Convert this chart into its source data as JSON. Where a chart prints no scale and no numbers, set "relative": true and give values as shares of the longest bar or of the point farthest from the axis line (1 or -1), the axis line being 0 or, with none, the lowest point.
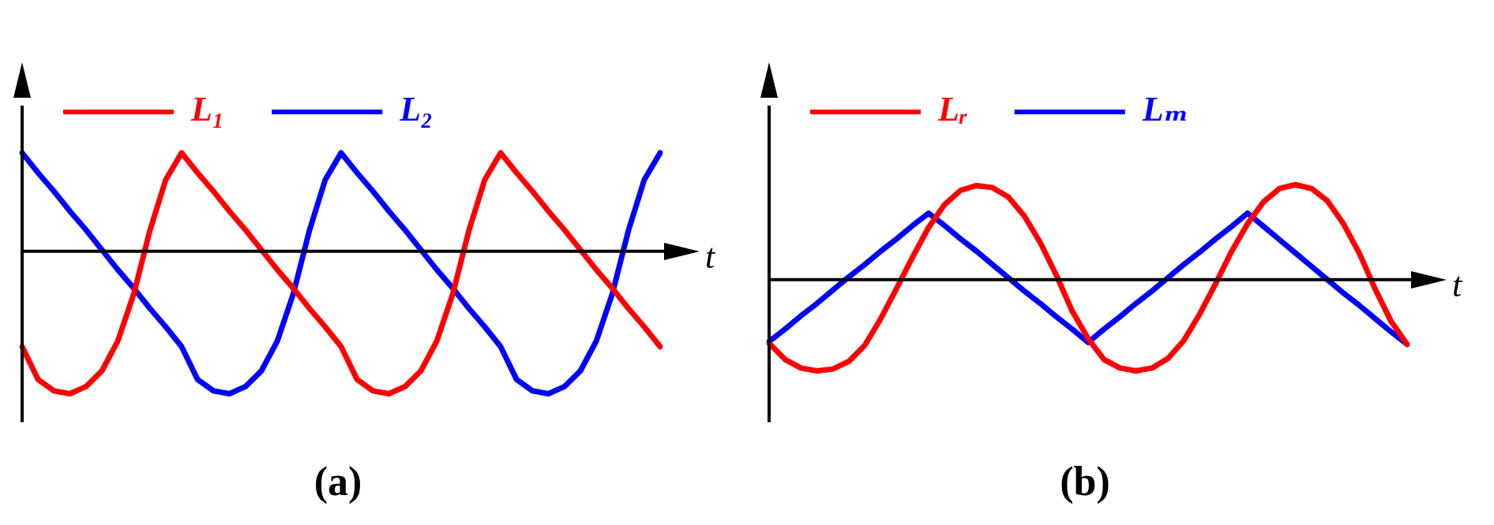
{
  "chart_data": [
    {
      "type": "line",
      "title": "(a)",
      "xlabel": "t",
      "relative": true,
      "legend": "top",
      "grid": false,
      "marker": "none",
      "categories": [
        null,
        null,
        null,
        null,
        null,
        null,
        null,
        null,
        null,
        null,
        null,
        null,
        null,
        null,
        null,
        null,
        null,
        null,
        null,
        null,
        null,
        null,
        null,
        null,
        null,
        null,
        null,
        null,
        null,
        null,
        null,
        null,
        null,
        null,
        null,
        null,
        null,
        null,
        null,
        null,
        null
      ],
      "series": [
        {
          "name": "L₁",
          "color": "#ff0000",
          "values": [
            -0.67,
            -0.9,
            -0.98,
            -1,
            -0.95,
            -0.84,
            -0.63,
            -0.3,
            0.14,
            0.5,
            0.69,
            0.55,
            0.42,
            0.28,
            0.15,
            0.01,
            -0.13,
            -0.26,
            -0.4,
            -0.53,
            -0.67,
            -0.9,
            -0.98,
            -1,
            -0.95,
            -0.84,
            -0.63,
            -0.3,
            0.14,
            0.5,
            0.69,
            0.55,
            0.42,
            0.28,
            0.15,
            0.01,
            -0.13,
            -0.26,
            -0.4,
            -0.53,
            -0.67
          ]
        },
        {
          "name": "L₂",
          "color": "#0000ff",
          "values": [
            0.69,
            0.55,
            0.42,
            0.28,
            0.15,
            0.01,
            -0.13,
            -0.26,
            -0.4,
            -0.53,
            -0.67,
            -0.9,
            -0.98,
            -1,
            -0.95,
            -0.84,
            -0.63,
            -0.3,
            0.14,
            0.5,
            0.69,
            0.55,
            0.42,
            0.28,
            0.15,
            0.01,
            -0.13,
            -0.26,
            -0.4,
            -0.53,
            -0.67,
            -0.9,
            -0.98,
            -1,
            -0.95,
            -0.84,
            -0.63,
            -0.3,
            0.14,
            0.5,
            0.69
          ]
        }
      ]
    },
    {
      "type": "line",
      "title": "(b)",
      "xlabel": "t",
      "relative": true,
      "legend": "top",
      "grid": false,
      "marker": "none",
      "categories": [
        null,
        null,
        null,
        null,
        null,
        null,
        null,
        null,
        null,
        null,
        null,
        null,
        null,
        null,
        null,
        null,
        null,
        null,
        null,
        null,
        null,
        null,
        null,
        null,
        null,
        null,
        null,
        null,
        null,
        null,
        null,
        null,
        null,
        null,
        null,
        null,
        null,
        null,
        null,
        null,
        null
      ],
      "series": [
        {
          "name": "Lᵣ",
          "color": "#ff0000",
          "values": [
            -0.67,
            -0.84,
            -0.93,
            -0.96,
            -0.94,
            -0.86,
            -0.69,
            -0.41,
            -0.09,
            0.24,
            0.55,
            0.79,
            0.94,
            0.99,
            0.97,
            0.87,
            0.67,
            0.39,
            0.05,
            -0.33,
            -0.62,
            -0.84,
            -0.93,
            -0.96,
            -0.93,
            -0.83,
            -0.64,
            -0.36,
            -0.04,
            0.3,
            0.59,
            0.82,
            0.96,
            1,
            0.96,
            0.83,
            0.59,
            0.28,
            -0.1,
            -0.44,
            -0.68
          ]
        },
        {
          "name": "Lₘ",
          "color": "#0000ff",
          "values": [
            -0.65,
            -0.52,
            -0.38,
            -0.25,
            -0.11,
            0.03,
            0.16,
            0.3,
            0.43,
            0.57,
            0.7,
            0.57,
            0.43,
            0.3,
            0.16,
            0.02,
            -0.12,
            -0.25,
            -0.39,
            -0.52,
            -0.66,
            -0.52,
            -0.39,
            -0.25,
            -0.12,
            0.02,
            0.16,
            0.29,
            0.43,
            0.56,
            0.7,
            0.56,
            0.42,
            0.28,
            0.14,
            0,
            -0.14,
            -0.27,
            -0.41,
            -0.55,
            -0.68
          ]
        }
      ]
    }
  ]
}
